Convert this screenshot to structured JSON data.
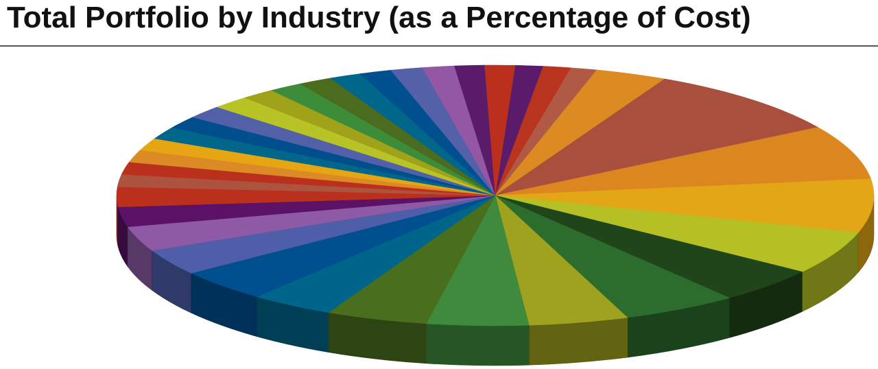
{
  "title": "Total Portfolio by Industry (as a Percentage of Cost)",
  "chart_data": {
    "type": "pie",
    "style": "3d-tilted",
    "start_angle_deg": -87,
    "direction": "clockwise",
    "values": [
      1.4,
      1.4,
      1.3,
      3.6,
      10.4,
      7.9,
      7.8,
      6.3,
      5.2,
      5.8,
      5.0,
      5.1,
      5.1,
      4.2,
      4.7,
      3.8,
      3.6,
      2.9,
      2.9,
      1.8,
      1.8,
      1.8,
      1.8,
      1.8,
      1.8,
      1.9,
      1.9,
      1.7,
      1.7,
      1.7,
      1.6,
      1.6,
      1.6,
      1.6,
      1.5,
      1.5
    ],
    "colors": [
      "#5a1c6a",
      "#b8341e",
      "#b05a45",
      "#dc8a22",
      "#a84f3e",
      "#dc8620",
      "#e2a616",
      "#b5c024",
      "#20451a",
      "#2c6c2c",
      "#9ea21e",
      "#3f8a3c",
      "#496e1e",
      "#00658a",
      "#004f8e",
      "#4e5ea8",
      "#8e5aa6",
      "#5b1166",
      "#ba301c",
      "#ac5440",
      "#ba301c",
      "#db8a26",
      "#e6a614",
      "#00668a",
      "#004f8c",
      "#5260a8",
      "#b8c326",
      "#a0a21a",
      "#3d8c3a",
      "#4b6c1e",
      "#00678b",
      "#00508f",
      "#5460a8",
      "#9457a4",
      "#5a1c6a",
      "#ba301c"
    ]
  }
}
